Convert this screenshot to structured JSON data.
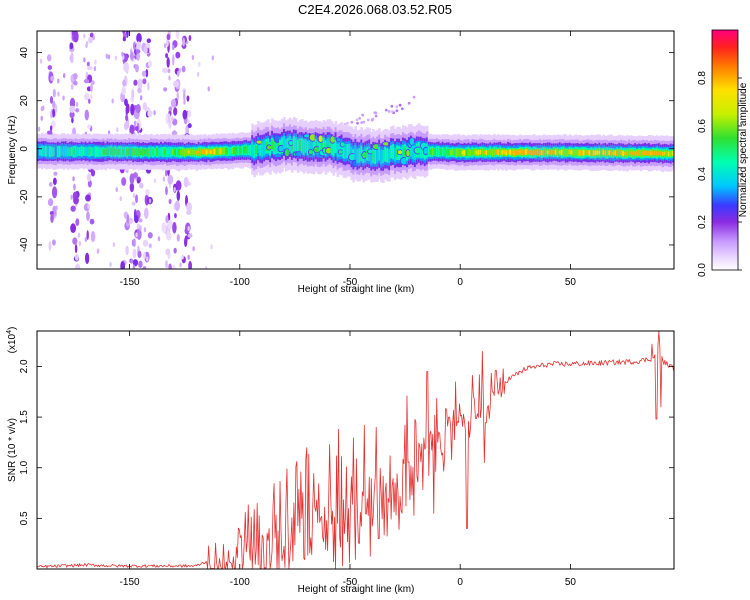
{
  "title": "C2E4.2026.068.03.52.R05",
  "colors": {
    "snr_line": "#e53030",
    "axis": "#000000",
    "background": "#ffffff"
  },
  "colormap": [
    {
      "v": 0.0,
      "c": "#ffffff"
    },
    {
      "v": 0.05,
      "c": "#ecd9ff"
    },
    {
      "v": 0.12,
      "c": "#c79aff"
    },
    {
      "v": 0.2,
      "c": "#8a2be2"
    },
    {
      "v": 0.27,
      "c": "#3a3aff"
    },
    {
      "v": 0.35,
      "c": "#00c8ff"
    },
    {
      "v": 0.45,
      "c": "#00ffb0"
    },
    {
      "v": 0.55,
      "c": "#30e030"
    },
    {
      "v": 0.65,
      "c": "#c8f000"
    },
    {
      "v": 0.75,
      "c": "#ffe000"
    },
    {
      "v": 0.85,
      "c": "#ff7a00"
    },
    {
      "v": 0.93,
      "c": "#ff2020"
    },
    {
      "v": 1.0,
      "c": "#ff0080"
    }
  ],
  "chart_data": [
    {
      "type": "heatmap",
      "title": "C2E4.2026.068.03.52.R05",
      "xlabel": "Height of straight line (km)",
      "ylabel": "Frequency (Hz)",
      "xlim": [
        -192,
        97
      ],
      "ylim": [
        -50,
        49
      ],
      "xticks": [
        -150,
        -100,
        -50,
        0,
        50
      ],
      "yticks": [
        -40,
        -20,
        0,
        20,
        40
      ],
      "colorbar": {
        "label": "Normalized spectral amplitude",
        "range": [
          0,
          1
        ],
        "ticks": [
          0.0,
          0.2,
          0.4,
          0.6,
          0.8
        ]
      },
      "main_band": {
        "center_frequency_hz": [
          [
            -192,
            -1
          ],
          [
            -120,
            -1.5
          ],
          [
            -95,
            -0.5
          ],
          [
            -80,
            2
          ],
          [
            -70,
            1
          ],
          [
            -60,
            1
          ],
          [
            -50,
            -2
          ],
          [
            -40,
            -3
          ],
          [
            -30,
            -2
          ],
          [
            -20,
            -1
          ],
          [
            0,
            -1.5
          ],
          [
            50,
            -1.5
          ],
          [
            97,
            -2
          ]
        ],
        "peak_amplitude": [
          [
            -192,
            0.45
          ],
          [
            -130,
            0.55
          ],
          [
            -120,
            0.85
          ],
          [
            -95,
            0.5
          ],
          [
            -75,
            0.5
          ],
          [
            -50,
            0.45
          ],
          [
            -20,
            0.5
          ],
          [
            0,
            0.7
          ],
          [
            30,
            0.9
          ],
          [
            60,
            0.75
          ],
          [
            90,
            0.95
          ],
          [
            97,
            0.6
          ]
        ]
      },
      "noise_columns_km": [
        -185,
        -175,
        -168,
        -152,
        -148,
        -146,
        -142,
        -133,
        -129,
        -124
      ]
    },
    {
      "type": "line",
      "xlabel": "Height of straight line (km)",
      "ylabel": "SNR (10 * v/v)",
      "multiplier_label": "(x10",
      "multiplier_exponent": "4",
      "xlim": [
        -192,
        97
      ],
      "ylim": [
        0,
        2.35
      ],
      "xticks": [
        -150,
        -100,
        -50,
        0,
        50
      ],
      "yticks": [
        0.5,
        1.0,
        1.5,
        2.0
      ],
      "ytick_labels": [
        "0.5",
        "1.0",
        "1.5",
        "2.0"
      ],
      "series": [
        {
          "name": "SNR",
          "points": [
            [
              -192,
              0.02
            ],
            [
              -170,
              0.04
            ],
            [
              -155,
              0.03
            ],
            [
              -120,
              0.03
            ],
            [
              -110,
              0.12
            ],
            [
              -100,
              0.25
            ],
            [
              -90,
              0.4
            ],
            [
              -80,
              0.5
            ],
            [
              -70,
              0.65
            ],
            [
              -60,
              0.75
            ],
            [
              -50,
              0.85
            ],
            [
              -40,
              0.95
            ],
            [
              -30,
              1.1
            ],
            [
              -20,
              1.25
            ],
            [
              -10,
              1.45
            ],
            [
              0,
              1.6
            ],
            [
              10,
              1.7
            ],
            [
              20,
              1.85
            ],
            [
              30,
              1.98
            ],
            [
              40,
              2.02
            ],
            [
              60,
              2.03
            ],
            [
              80,
              2.05
            ],
            [
              88,
              2.08
            ],
            [
              90,
              2.2
            ],
            [
              92,
              2.05
            ],
            [
              97,
              1.98
            ]
          ],
          "spikes": [
            [
              -38,
              1.4
            ],
            [
              -37,
              0.3
            ],
            [
              -25,
              1.42
            ],
            [
              -20,
              1.45
            ],
            [
              -15,
              1.95
            ],
            [
              -12,
              0.55
            ],
            [
              -5,
              1.5
            ],
            [
              3,
              0.4
            ],
            [
              10,
              2.15
            ],
            [
              11,
              1.05
            ],
            [
              87,
              2.22
            ],
            [
              89,
              1.48
            ],
            [
              90,
              2.35
            ],
            [
              91,
              1.6
            ]
          ]
        }
      ]
    }
  ]
}
